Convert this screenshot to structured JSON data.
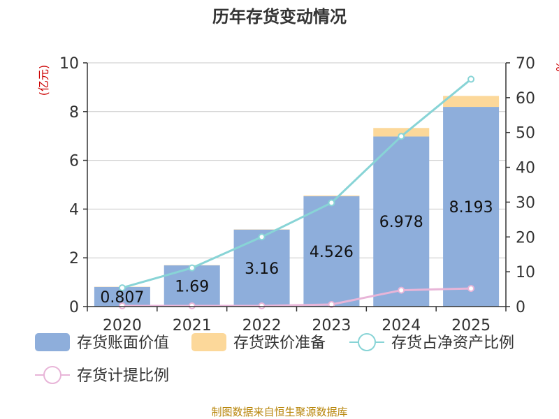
{
  "chart_data": {
    "type": "bar",
    "title": "历年存货变动情况",
    "categories": [
      "2020",
      "2021",
      "2022",
      "2023",
      "2024",
      "2025"
    ],
    "left_axis": {
      "label": "(亿元)",
      "ylim": [
        0,
        10
      ],
      "ticks": [
        "0",
        "2",
        "4",
        "6",
        "8",
        "10"
      ]
    },
    "right_axis": {
      "label": "%",
      "ylim": [
        0,
        70
      ],
      "ticks": [
        "0",
        "10",
        "20",
        "30",
        "40",
        "50",
        "60",
        "70"
      ]
    },
    "grid": true,
    "legend_position": "bottom",
    "series": [
      {
        "name": "存货账面价值",
        "kind": "bar",
        "axis": "left",
        "color": "#8eaedb",
        "values": [
          0.807,
          1.69,
          3.16,
          4.526,
          6.978,
          8.193
        ],
        "labels": [
          "0.807",
          "1.69",
          "3.16",
          "4.526",
          "6.978",
          "8.193"
        ]
      },
      {
        "name": "存货跌价准备",
        "kind": "bar-stacked",
        "axis": "left",
        "color": "#fcd89a",
        "values": [
          0.01,
          0.01,
          0.01,
          0.03,
          0.35,
          0.45
        ]
      },
      {
        "name": "存货占净资产比例",
        "kind": "line",
        "axis": "right",
        "color": "#88d4d6",
        "values": [
          5.4,
          11.1,
          20.0,
          29.8,
          48.9,
          65.3
        ]
      },
      {
        "name": "存货计提比例",
        "kind": "line",
        "axis": "right",
        "color": "#e8b5d8",
        "values": [
          0.2,
          0.2,
          0.2,
          0.6,
          4.7,
          5.2
        ]
      }
    ]
  },
  "source": "制图数据来自恒生聚源数据库"
}
